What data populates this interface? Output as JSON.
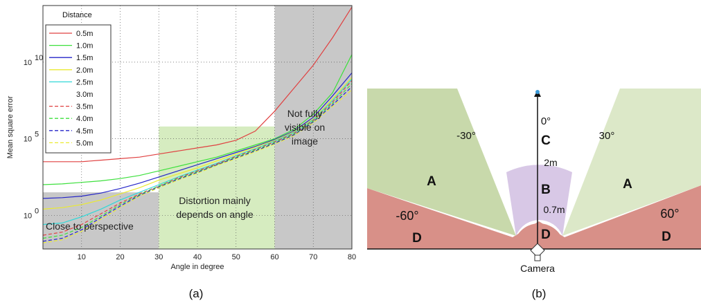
{
  "chart_data": {
    "type": "line",
    "title": "",
    "xlabel": "Angle in degree",
    "ylabel": "Mean square error",
    "yscale": "log",
    "xlim": [
      0,
      80
    ],
    "ylim_log10": [
      -2.2,
      13.7
    ],
    "grid": true,
    "x_ticks": [
      "10",
      "20",
      "30",
      "40",
      "50",
      "60",
      "70",
      "80"
    ],
    "y_ticks": [
      {
        "base": "10",
        "exp": "0",
        "log10": 0
      },
      {
        "base": "10",
        "exp": "5",
        "log10": 5
      },
      {
        "base": "10",
        "exp": "10",
        "log10": 10
      }
    ],
    "legend_title": "Distance",
    "legend_position": "top-left",
    "x": [
      0,
      5,
      10,
      15,
      20,
      25,
      30,
      35,
      40,
      45,
      50,
      55,
      60,
      65,
      70,
      75,
      80
    ],
    "series": [
      {
        "name": "0.5m",
        "color": "#e04040",
        "dash": "solid",
        "log10_values": [
          3.5,
          3.5,
          3.5,
          3.6,
          3.7,
          3.8,
          4.0,
          4.2,
          4.4,
          4.6,
          4.9,
          5.5,
          6.8,
          8.3,
          9.8,
          11.6,
          13.6
        ]
      },
      {
        "name": "1.0m",
        "color": "#3ce03c",
        "dash": "solid",
        "log10_values": [
          2.0,
          2.05,
          2.15,
          2.25,
          2.4,
          2.6,
          2.9,
          3.2,
          3.5,
          3.8,
          4.2,
          4.6,
          5.0,
          5.6,
          6.6,
          8.0,
          10.5
        ]
      },
      {
        "name": "1.5m",
        "color": "#2424c8",
        "dash": "solid",
        "log10_values": [
          1.1,
          1.15,
          1.25,
          1.45,
          1.75,
          2.1,
          2.5,
          2.9,
          3.3,
          3.7,
          4.1,
          4.5,
          4.95,
          5.5,
          6.4,
          7.8,
          9.3
        ]
      },
      {
        "name": "2.0m",
        "color": "#eaea30",
        "dash": "solid",
        "log10_values": [
          0.4,
          0.5,
          0.7,
          1.0,
          1.4,
          1.8,
          2.3,
          2.7,
          3.1,
          3.55,
          4.0,
          4.45,
          4.9,
          5.45,
          6.3,
          7.6,
          9.0
        ]
      },
      {
        "name": "2.5m",
        "color": "#30d8d8",
        "dash": "solid",
        "log10_values": [
          -0.6,
          -0.5,
          -0.1,
          0.4,
          1.0,
          1.5,
          2.0,
          2.5,
          2.95,
          3.4,
          3.9,
          4.35,
          4.85,
          5.4,
          6.25,
          7.5,
          8.9
        ]
      },
      {
        "name": "3.0m",
        "color": "#ffffff",
        "dash": "solid",
        "log10_values": []
      },
      {
        "name": "3.5m",
        "color": "#e04040",
        "dash": "dashed",
        "log10_values": [
          -1.3,
          -1.1,
          -0.6,
          0.1,
          0.8,
          1.4,
          1.9,
          2.45,
          2.9,
          3.35,
          3.85,
          4.3,
          4.8,
          5.35,
          6.2,
          7.4,
          8.8
        ]
      },
      {
        "name": "4.0m",
        "color": "#3ce03c",
        "dash": "dashed",
        "log10_values": [
          -1.5,
          -1.3,
          -0.8,
          -0.05,
          0.7,
          1.35,
          1.9,
          2.4,
          2.85,
          3.3,
          3.8,
          4.25,
          4.75,
          5.3,
          6.15,
          7.3,
          8.6
        ]
      },
      {
        "name": "4.5m",
        "color": "#2424c8",
        "dash": "dashed",
        "log10_values": [
          -1.7,
          -1.5,
          -0.95,
          -0.15,
          0.6,
          1.3,
          1.85,
          2.35,
          2.8,
          3.3,
          3.75,
          4.2,
          4.7,
          5.25,
          6.1,
          7.2,
          8.4
        ]
      },
      {
        "name": "5.0m",
        "color": "#eaea30",
        "dash": "dashed",
        "log10_values": [
          -1.8,
          -1.6,
          -1.05,
          -0.25,
          0.5,
          1.25,
          1.8,
          2.3,
          2.75,
          3.25,
          3.7,
          4.15,
          4.65,
          5.2,
          6.05,
          7.1,
          8.2
        ]
      }
    ],
    "regions": [
      {
        "label": "Close to perspective",
        "x_from": 0,
        "x_to": 30,
        "y_from_log10": -2.2,
        "y_to_log10": 1.5,
        "color": "#c8c8c8"
      },
      {
        "label": "Distortion mainly depends on angle",
        "x_from": 30,
        "x_to": 60,
        "y_from_log10": -2.2,
        "y_to_log10": 5.8,
        "color": "#d6ecc0"
      },
      {
        "label": "Not fully visible on image",
        "x_from": 60,
        "x_to": 80,
        "y_from_log10": -2.2,
        "y_to_log10": 13.7,
        "color": "#c8c8c8"
      }
    ]
  },
  "region_text": {
    "close": "Close to perspective",
    "distortion_1": "Distortion mainly",
    "distortion_2": "depends on angle",
    "not_visible_1": "Not fully",
    "not_visible_2": "visible on",
    "not_visible_3": "image"
  },
  "diagram": {
    "zone_a": "A",
    "zone_b": "B",
    "zone_c": "C",
    "zone_d": "D",
    "angle_0": "0°",
    "angle_neg30": "-30°",
    "angle_pos30": "30°",
    "angle_neg60": "-60°",
    "angle_pos60": "60°",
    "dist_2m": "2m",
    "dist_07m": "0.7m",
    "camera": "Camera",
    "colors": {
      "a": "#d8e6c4",
      "a_dark": "#c4d8a8",
      "b": "#d6c6e4",
      "d": "#d89088"
    }
  },
  "captions": {
    "a": "(a)",
    "b": "(b)"
  }
}
